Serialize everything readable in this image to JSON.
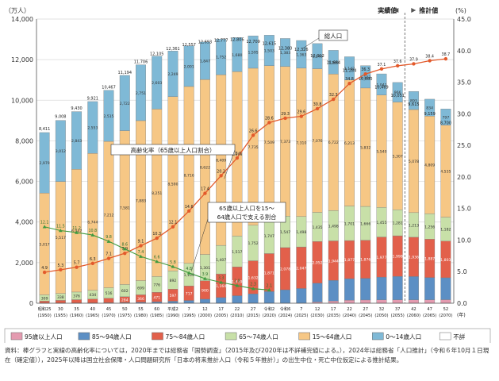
{
  "chart_data": {
    "type": "bar",
    "left_axis": {
      "unit": "（万人）",
      "ticks": [
        "0",
        "2,000",
        "4,000",
        "6,000",
        "8,000",
        "10,000",
        "12,000",
        "14,000"
      ],
      "max": 14000
    },
    "right_axis": {
      "unit": "(%)",
      "ticks": [
        "0.0",
        "5.0",
        "10.0",
        "15.0",
        "20.0",
        "25.0",
        "30.0",
        "35.0",
        "40.0",
        "45.0"
      ],
      "max": 45
    },
    "divider": {
      "left": "実績値",
      "right": "推計値",
      "after_index": 22
    },
    "labels": {
      "total": "総人口",
      "aging_rate": "高齢化率（65歳以上人口割合）",
      "support_ratio_1": "65歳以上人口を15～",
      "support_ratio_2": "64歳人口で支える割合"
    },
    "x_year_labels": [
      "昭和25",
      "30",
      "35",
      "40",
      "45",
      "50",
      "55",
      "60",
      "平成2",
      "7",
      "12",
      "17",
      "22",
      "27",
      "令和2",
      "令和6",
      "7",
      "12",
      "17",
      "22",
      "27",
      "32",
      "37",
      "42",
      "47",
      "52"
    ],
    "x_ad_labels": [
      "(1950)",
      "(1955)",
      "(1960)",
      "(1965)",
      "(1970)",
      "(1975)",
      "(1980)",
      "(1985)",
      "(1990)",
      "(1995)",
      "(2000)",
      "(2005)",
      "(2010)",
      "(2015)",
      "(2020)",
      "(2024)",
      "(2025)",
      "(2030)",
      "(2035)",
      "(2040)",
      "(2045)",
      "(2050)",
      "(2055)",
      "(2060)",
      "(2065)",
      "(2070)"
    ],
    "x_unit": "(年)",
    "totals": [
      8411,
      9008,
      9430,
      9921,
      10467,
      11194,
      11706,
      12105,
      12361,
      12557,
      12693,
      12777,
      12806,
      12709,
      12615,
      12380,
      12326,
      12012,
      11664,
      11284,
      10880,
      10469,
      10051,
      9615,
      9159,
      8700
    ],
    "total_labels": [
      "8,411",
      "9,008",
      "9,430",
      "9,921",
      "10,467",
      "11,194",
      "11,706",
      "12,105",
      "12,361",
      "12,557",
      "12,693",
      "12,777",
      "12,806",
      "12,709",
      "12,615",
      "12,380",
      "12,326",
      "12,012",
      "11,664",
      "11,284",
      "10,880",
      "10,469",
      "10,051",
      "9,615",
      "9,159",
      "8,700"
    ],
    "series": [
      {
        "name": "0～14歳人口",
        "color": "#7fb9d6",
        "values": [
          2979,
          3012,
          2843,
          2553,
          2515,
          2722,
          2751,
          2603,
          2249,
          2001,
          1847,
          1752,
          1680,
          1595,
          1503,
          1383,
          1363,
          1240,
          1169,
          1142,
          1103,
          1041,
          966,
          893,
          834,
          797
        ],
        "labels": [
          "2,979",
          "3,012",
          "2,843",
          "2,553",
          "2,515",
          "2,722",
          "2,751",
          "2,603",
          "2,249",
          "2,001",
          "1,847",
          "1,752",
          "1,680",
          "1,595",
          "1,503",
          "1,383",
          "1,363",
          "1,240",
          "1,169",
          "1,142",
          "1,103",
          "1,041",
          "966",
          "893",
          "834",
          "797"
        ]
      },
      {
        "name": "15～64歳人口",
        "color": "#f6c785",
        "values": [
          5017,
          5517,
          6047,
          6744,
          7212,
          7581,
          7883,
          8251,
          8590,
          8716,
          8622,
          8409,
          8103,
          7735,
          7509,
          7373,
          7310,
          7076,
          6722,
          6213,
          5832,
          5540,
          5307,
          5078,
          4809,
          4535
        ],
        "labels": [
          "5,017",
          "5,517",
          "6,047",
          "6,744",
          "7,212",
          "7,581",
          "7,883",
          "8,251",
          "8,590",
          "8,716",
          "8,622",
          "8,409",
          "8,103",
          "7,735",
          "7,509",
          "7,373",
          "7,310",
          "7,076",
          "6,722",
          "6,213",
          "5,832",
          "5,540",
          "5,307",
          "5,078",
          "4,809",
          "4,535"
        ]
      },
      {
        "name": "65～74歳人口",
        "color": "#c8e0a8",
        "values": [
          309,
          338,
          376,
          434,
          516,
          602,
          699,
          776,
          892,
          1109,
          1301,
          1407,
          1517,
          1752,
          1747,
          1547,
          1498,
          1435,
          1498,
          1701,
          1666,
          1455,
          1281,
          1213,
          1256,
          1182
        ],
        "labels": [
          "309",
          "338",
          "376",
          "434",
          "516",
          "602",
          "699",
          "776",
          "892",
          "1,109",
          "1,301",
          "1,407",
          "1,517",
          "1,752",
          "1,747",
          "1,547",
          "1,498",
          "1,435",
          "1,498",
          "1,701",
          "1,666",
          "1,455",
          "1,281",
          "1,213",
          "1,256",
          "1,182"
        ]
      },
      {
        "name": "75～84歳人口",
        "color": "#e2604b",
        "values": [
          94,
          131,
          163,
          189,
          223,
          284,
          366,
          471,
          597,
          717,
          900,
          1164,
          1419,
          1632,
          1871,
          2078,
          2047,
          2052,
          1944,
          1877,
          1876,
          1977,
          1998,
          1936,
          1887,
          1803
        ],
        "labels": [
          "94",
          "131",
          "163",
          "189",
          "223",
          "284",
          "366",
          "471",
          "597",
          "717",
          "900",
          "1,164",
          "1,419",
          "1,632",
          "1,871",
          "2,078",
          "2,047",
          "2,052",
          "1,944",
          "1,877",
          "1,876",
          "1,977",
          "1,998",
          "1,936",
          "1,887",
          "1,803"
        ]
      },
      {
        "name": "85～94歳人口",
        "color": "#5c8fc4",
        "values": [
          10,
          10,
          12,
          16,
          24,
          35,
          48,
          67,
          99,
          136,
          201,
          279,
          371,
          459,
          575,
          662,
          726,
          930,
          1017,
          1060,
          1068,
          1121,
          1154,
          1150,
          1097,
          1080
        ],
        "labels": [
          "",
          "",
          "",
          "",
          "",
          "",
          "",
          "",
          "",
          "",
          "",
          "",
          "",
          "",
          "",
          "",
          "",
          "",
          "",
          "",
          "",
          "",
          "",
          "",
          "",
          ""
        ]
      },
      {
        "name": "95歳以上人口",
        "color": "#e49bb0",
        "values": [
          0,
          0,
          0,
          0,
          0,
          0,
          0,
          0,
          0,
          0,
          0,
          0,
          0,
          0,
          0,
          0,
          0,
          60,
          110,
          150,
          160,
          165,
          170,
          165,
          170,
          175
        ],
        "labels": [
          "",
          "",
          "",
          "",
          "",
          "",
          "",
          "",
          "",
          "",
          "",
          "",
          "",
          "",
          "",
          "",
          "",
          "",
          "",
          "",
          "",
          "",
          "",
          "",
          "",
          ""
        ]
      },
      {
        "name": "不詳",
        "color": "#ffffff",
        "values": [
          0,
          0,
          0,
          0,
          0,
          0,
          0,
          0,
          0,
          0,
          0,
          0,
          0,
          0,
          0,
          0,
          0,
          0,
          0,
          0,
          0,
          0,
          0,
          0,
          0,
          0
        ],
        "labels": [
          "",
          "",
          "",
          "",
          "",
          "",
          "",
          "",
          "",
          "",
          "",
          "",
          "",
          "",
          "",
          "",
          "",
          "",
          "",
          "",
          "",
          "",
          "",
          "",
          "",
          ""
        ]
      }
    ],
    "aging_rate": [
      4.9,
      5.3,
      5.7,
      6.3,
      7.1,
      7.9,
      9.1,
      10.3,
      12.1,
      14.6,
      17.4,
      20.2,
      23.0,
      26.6,
      28.6,
      29.3,
      29.6,
      30.8,
      32.3,
      34.8,
      36.3,
      37.1,
      37.6,
      37.9,
      38.4,
      38.7
    ],
    "support_ratio": [
      12.1,
      11.5,
      11.2,
      10.8,
      9.8,
      8.6,
      7.4,
      6.6,
      5.8,
      4.8,
      3.9,
      3.3,
      2.8,
      2.3,
      2.1,
      2.0,
      2.0,
      1.9,
      1.8,
      1.6,
      1.4,
      1.4,
      1.4,
      1.4,
      1.4,
      1.3
    ],
    "support_ratio_shown": [
      true,
      true,
      true,
      true,
      true,
      true,
      true,
      true,
      true,
      true,
      true,
      true,
      true,
      true,
      true,
      false,
      false,
      false,
      false,
      false,
      false,
      false,
      false,
      false,
      false,
      false
    ]
  },
  "note": {
    "lead": "資料：",
    "text": "棒グラフと実線の高齢化率については，2020年までは総務省「国勢調査」（2015年及び2020年は不詳補完値による。），2024年は総務省「人口推計」（令和６年10月１日現在（確定値）），2025年以降は国立社会保障・人口問題研究所「日本の将来推計人口（令和５年推計）」の出生中位・死亡中位仮定による推計結果。"
  }
}
